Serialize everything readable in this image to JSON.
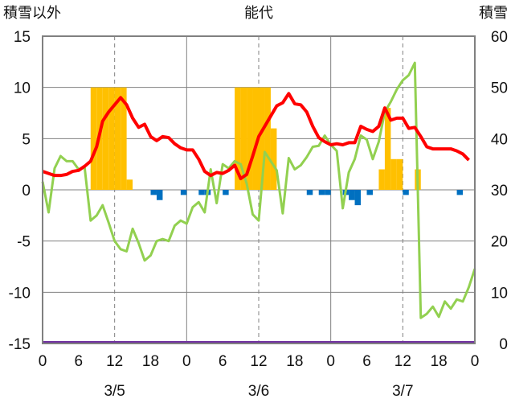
{
  "chart_data": {
    "type": "bar+line",
    "title": "能代",
    "left_axis_title": "積雪以外",
    "right_axis_title": "積雪",
    "left_ylim": [
      -15,
      15
    ],
    "left_ticks": [
      "15",
      "10",
      "5",
      "0",
      "-5",
      "-10",
      "-15"
    ],
    "right_ylim": [
      0,
      60
    ],
    "right_ticks": [
      "60",
      "50",
      "40",
      "30",
      "20",
      "10",
      "0"
    ],
    "x_hour_ticks": [
      "0",
      "6",
      "12",
      "18",
      "0",
      "6",
      "12",
      "18",
      "0",
      "6",
      "12",
      "18",
      "0"
    ],
    "date_labels": [
      "3/5",
      "3/6",
      "3/7"
    ],
    "grid": true,
    "colors": {
      "red_line": "#ff0000",
      "green_line": "#92d050",
      "bars_orange": "#ffc000",
      "bars_blue": "#0070c0",
      "baseline_purple": "#7030a0",
      "grid": "#808080"
    },
    "bars_orange": [
      {
        "hour": 9,
        "value": 10
      },
      {
        "hour": 10,
        "value": 10
      },
      {
        "hour": 11,
        "value": 10
      },
      {
        "hour": 12,
        "value": 10
      },
      {
        "hour": 13,
        "value": 10
      },
      {
        "hour": 14,
        "value": 10
      },
      {
        "hour": 15,
        "value": 1
      },
      {
        "hour": 33,
        "value": 10
      },
      {
        "hour": 34,
        "value": 10
      },
      {
        "hour": 35,
        "value": 10
      },
      {
        "hour": 36,
        "value": 10
      },
      {
        "hour": 37,
        "value": 10
      },
      {
        "hour": 38,
        "value": 10
      },
      {
        "hour": 39,
        "value": 6
      },
      {
        "hour": 57,
        "value": 2
      },
      {
        "hour": 58,
        "value": 8
      },
      {
        "hour": 59,
        "value": 3
      },
      {
        "hour": 60,
        "value": 3
      },
      {
        "hour": 63,
        "value": 2
      }
    ],
    "bars_blue": [
      {
        "hour": 19,
        "value": -0.5
      },
      {
        "hour": 20,
        "value": -1
      },
      {
        "hour": 24,
        "value": -0.5
      },
      {
        "hour": 27,
        "value": -0.5
      },
      {
        "hour": 28,
        "value": -0.5
      },
      {
        "hour": 31,
        "value": -0.5
      },
      {
        "hour": 45,
        "value": -0.5
      },
      {
        "hour": 47,
        "value": -0.5
      },
      {
        "hour": 48,
        "value": -0.5
      },
      {
        "hour": 51,
        "value": -0.5
      },
      {
        "hour": 52,
        "value": -1
      },
      {
        "hour": 53,
        "value": -1.5
      },
      {
        "hour": 55,
        "value": -0.5
      },
      {
        "hour": 61,
        "value": -0.5
      },
      {
        "hour": 70,
        "value": -0.5
      }
    ],
    "red_line": [
      1.8,
      1.6,
      1.4,
      1.4,
      1.5,
      1.8,
      1.9,
      2.3,
      2.8,
      4.2,
      6.7,
      7.6,
      8.3,
      9.0,
      8.3,
      7.0,
      6.1,
      6.4,
      5.2,
      4.8,
      5.2,
      5.1,
      4.5,
      4.1,
      3.9,
      3.9,
      3.0,
      1.8,
      1.4,
      1.7,
      1.6,
      1.9,
      2.4,
      1.1,
      1.5,
      3.3,
      5.2,
      6.2,
      7.2,
      8.2,
      8.5,
      9.4,
      8.4,
      8.3,
      7.6,
      6.2,
      5.1,
      4.7,
      4.4,
      4.5,
      4.4,
      4.6,
      4.6,
      6.2,
      5.9,
      5.7,
      6.2,
      8.0,
      6.8,
      7.0,
      7.0,
      6.0,
      6.1,
      5.2,
      4.2,
      4.0,
      4.0,
      4.0,
      4.0,
      3.8,
      3.5,
      2.9
    ],
    "green_line": [
      0.8,
      -2.2,
      2.1,
      3.3,
      2.8,
      2.8,
      2.0,
      2.2,
      -3.0,
      -2.5,
      -1.5,
      -3.2,
      -5.0,
      -5.8,
      -6.0,
      -3.8,
      -5.2,
      -6.9,
      -6.4,
      -5.0,
      -4.8,
      -5.0,
      -3.5,
      -3.0,
      -3.3,
      -1.7,
      -1.2,
      -2.2,
      2.0,
      -1.3,
      2.5,
      2.1,
      2.8,
      2.5,
      0.6,
      -2.4,
      -3.0,
      3.7,
      2.8,
      1.9,
      -2.3,
      3.1,
      2.0,
      2.4,
      3.2,
      4.2,
      4.3,
      5.3,
      4.4,
      3.8,
      -1.8,
      1.7,
      3.0,
      5.3,
      4.9,
      3.0,
      4.7,
      7.6,
      8.6,
      9.8,
      10.7,
      11.2,
      12.4,
      -12.5,
      -12.1,
      -11.4,
      -12.4,
      -10.9,
      -11.6,
      -10.7,
      -10.9,
      -9.5,
      -7.7
    ]
  }
}
